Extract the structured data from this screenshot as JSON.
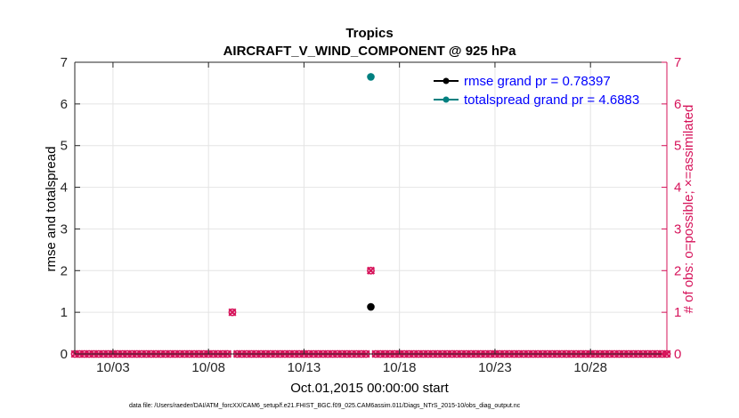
{
  "chart_data": {
    "type": "scatter",
    "title": "Tropics",
    "subtitle": "AIRCRAFT_V_WIND_COMPONENT @ 925 hPa",
    "xlabel": "Oct.01,2015 00:00:00 start",
    "ylabel": "rmse and totalspread",
    "y2label": "# of obs: o=possible; ×=assimilated",
    "xlim": [
      1.0,
      32.0
    ],
    "ylim": [
      0,
      7
    ],
    "y2lim": [
      0,
      7
    ],
    "x_ticks": [
      {
        "value": 3,
        "label": "10/03"
      },
      {
        "value": 8,
        "label": "10/08"
      },
      {
        "value": 13,
        "label": "10/13"
      },
      {
        "value": 18,
        "label": "10/18"
      },
      {
        "value": 23,
        "label": "10/23"
      },
      {
        "value": 28,
        "label": "10/28"
      }
    ],
    "y_ticks": [
      0,
      1,
      2,
      3,
      4,
      5,
      6,
      7
    ],
    "y2_ticks": [
      0,
      1,
      2,
      3,
      4,
      5,
      6,
      7
    ],
    "grid": true,
    "legend_position": "top-right",
    "series": [
      {
        "name": "rmse grand pr = 0.78397",
        "color": "#000000",
        "points": [
          {
            "x": 16.5,
            "y": 1.13
          }
        ]
      },
      {
        "name": "totalspread grand pr = 4.6883",
        "color": "#008080",
        "points": [
          {
            "x": 16.5,
            "y": 6.65
          }
        ]
      }
    ],
    "obs_count": {
      "color": "#d6135a",
      "interval_days": 0.25,
      "start": 1.0,
      "end": 32.0,
      "nonzero": [
        {
          "x": 9.25,
          "possible": 1,
          "assimilated": 1
        },
        {
          "x": 16.5,
          "possible": 2,
          "assimilated": 2
        }
      ]
    }
  },
  "footer": "data file: /Users/raeder/DAI/ATM_forcXX/CAM6_setup/f.e21.FHIST_BGC.f09_025.CAM6assim.011/Diags_NTrS_2015-10/obs_diag_output.nc"
}
